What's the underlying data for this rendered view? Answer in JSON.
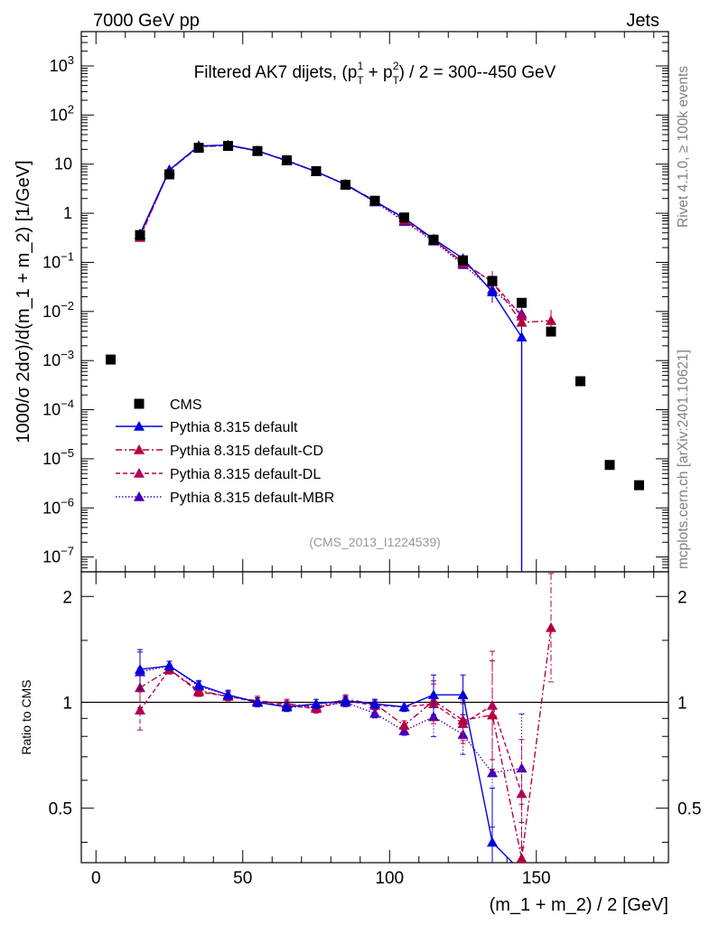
{
  "header": {
    "left": "7000 GeV pp",
    "right": "Jets",
    "side_rivet": "Rivet 4.1.0, ≥ 100k events",
    "side_mcplots": "mcplots.cern.ch [arXiv:2401.10621]"
  },
  "colors": {
    "cms": "#000000",
    "default": "#0000dd",
    "cd": "#b3003c",
    "dl": "#b3005a",
    "mbr": "#4400bb"
  },
  "chart_data": {
    "type": "line",
    "title": "Filtered AK7 dijets, (p_T^1 + p_T^2) / 2 = 300--450 GeV",
    "title_main": "Filtered AK7 dijets, (p",
    "title_sub1": "T",
    "title_sup1": "1",
    "title_mid": " + p",
    "title_sub2": "T",
    "title_sup2": "2",
    "title_end": ") / 2 = 300--450 GeV",
    "ylabel": "1000/σ  2dσ)/d(m_1 + m_2) [1/GeV]",
    "xlabel": "(m_1 + m_2) / 2 [GeV]",
    "ratio_ylabel": "Ratio to CMS",
    "analysis_tag": "(CMS_2013_I1224539)",
    "xlim": [
      -5,
      195
    ],
    "ylim_main": [
      5e-08,
      5000
    ],
    "ylim_ratio": [
      0.35,
      2.35
    ],
    "yscale_main": "log",
    "yscale_ratio": "log",
    "legend_position": "lower-left",
    "x_ticks": [
      "0",
      "50",
      "100",
      "150"
    ],
    "x_tick_values": [
      0,
      50,
      100,
      150
    ],
    "y_ticks_main": [
      {
        "base": "10",
        "exp": "3",
        "v": 1000
      },
      {
        "base": "10",
        "exp": "2",
        "v": 100
      },
      {
        "base": "10",
        "exp": "",
        "v": 10
      },
      {
        "base": "1",
        "exp": "",
        "v": 1
      },
      {
        "base": "10",
        "exp": "−1",
        "v": 0.1
      },
      {
        "base": "10",
        "exp": "−2",
        "v": 0.01
      },
      {
        "base": "10",
        "exp": "−3",
        "v": 0.001
      },
      {
        "base": "10",
        "exp": "−4",
        "v": 0.0001
      },
      {
        "base": "10",
        "exp": "−5",
        "v": 1e-05
      },
      {
        "base": "10",
        "exp": "−6",
        "v": 1e-06
      },
      {
        "base": "10",
        "exp": "−7",
        "v": 1e-07
      }
    ],
    "y_ticks_ratio": [
      {
        "label": "2",
        "v": 2
      },
      {
        "label": "1",
        "v": 1
      },
      {
        "label": "0.5",
        "v": 0.5
      }
    ],
    "cms": {
      "name": "CMS",
      "x": [
        5,
        15,
        25,
        35,
        45,
        55,
        65,
        75,
        85,
        95,
        105,
        115,
        125,
        135,
        145,
        155,
        165,
        175,
        185
      ],
      "y": [
        0.00105,
        0.36,
        6.2,
        21.5,
        23.5,
        18.5,
        12.0,
        7.2,
        3.8,
        1.8,
        0.82,
        0.29,
        0.11,
        0.042,
        0.015,
        0.0039,
        0.00038,
        7.5e-06,
        2.9e-06
      ]
    },
    "series": [
      {
        "name": "Pythia 8.315 default",
        "key": "default",
        "dash": "",
        "x": [
          15,
          25,
          35,
          45,
          55,
          65,
          75,
          85,
          95,
          105,
          115,
          125,
          135,
          145
        ],
        "y": [
          0.38,
          7.6,
          23.5,
          24.5,
          18.8,
          11.7,
          7.1,
          3.8,
          1.75,
          0.8,
          0.3,
          0.12,
          0.025,
          0.003
        ],
        "ratio": [
          1.24,
          1.27,
          1.12,
          1.05,
          1.0,
          0.97,
          0.99,
          1.01,
          0.99,
          0.97,
          1.05,
          1.05,
          0.4,
          0.0
        ]
      },
      {
        "name": "Pythia 8.315 default-CD",
        "key": "cd",
        "dash": "7 3 2 3",
        "x": [
          15,
          25,
          35,
          45,
          55,
          65,
          75,
          85,
          95,
          105,
          115,
          125,
          135,
          145,
          155
        ],
        "y": [
          0.32,
          7.5,
          22.5,
          24.0,
          18.5,
          12.0,
          7.0,
          3.9,
          1.8,
          0.72,
          0.29,
          0.1,
          0.04,
          0.006,
          0.0065
        ],
        "ratio": [
          1.1,
          1.24,
          1.08,
          1.04,
          1.01,
          0.99,
          0.97,
          1.02,
          0.99,
          0.86,
          1.01,
          0.89,
          0.92,
          0.36,
          1.63
        ]
      },
      {
        "name": "Pythia 8.315 default-DL",
        "key": "dl",
        "dash": "5 3",
        "x": [
          15,
          25,
          35,
          45,
          55,
          65,
          75,
          85,
          95,
          105,
          115,
          125,
          135,
          145
        ],
        "y": [
          0.34,
          7.4,
          23.0,
          24.2,
          18.6,
          11.8,
          7.0,
          3.9,
          1.75,
          0.8,
          0.29,
          0.097,
          0.04,
          0.008
        ],
        "ratio": [
          0.95,
          1.24,
          1.07,
          1.04,
          1.0,
          0.98,
          0.96,
          1.01,
          0.98,
          0.97,
          0.99,
          0.87,
          0.98,
          0.55
        ]
      },
      {
        "name": "Pythia 8.315 default-MBR",
        "key": "mbr",
        "dash": "1.5 2",
        "x": [
          15,
          25,
          35,
          45,
          55,
          65,
          75,
          85,
          95,
          105,
          115,
          125,
          135,
          145
        ],
        "y": [
          0.36,
          7.7,
          23.5,
          24.5,
          18.5,
          11.6,
          7.0,
          3.8,
          1.7,
          0.68,
          0.27,
          0.09,
          0.028,
          0.009
        ],
        "ratio": [
          1.22,
          1.27,
          1.11,
          1.05,
          1.0,
          0.97,
          0.97,
          1.0,
          0.93,
          0.83,
          0.91,
          0.81,
          0.63,
          0.65
        ]
      }
    ]
  }
}
